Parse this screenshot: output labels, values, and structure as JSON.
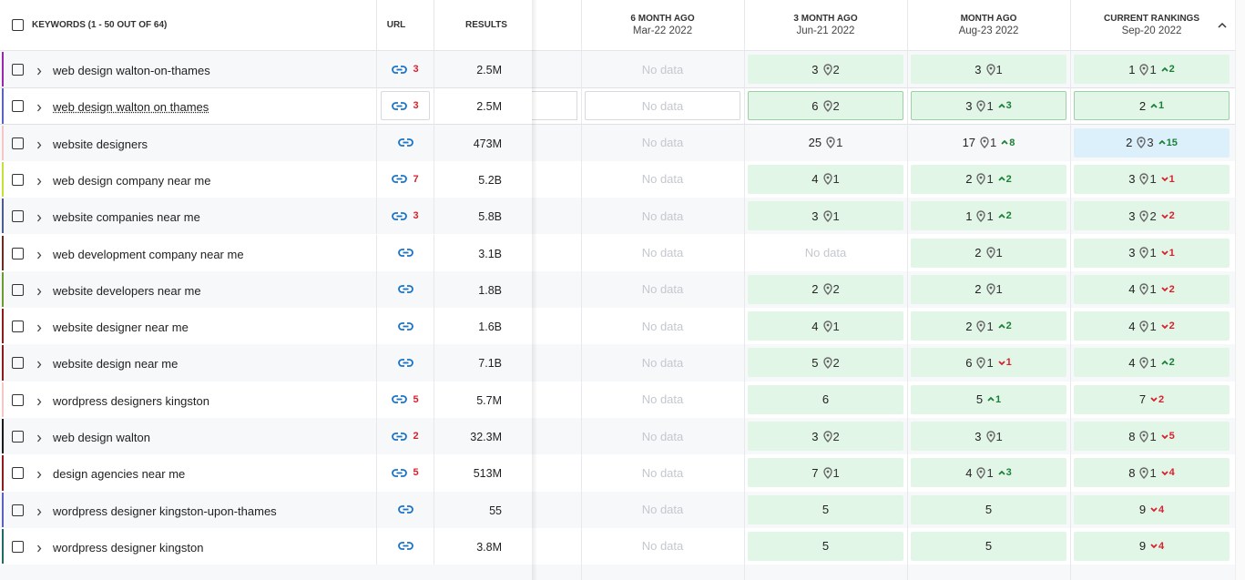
{
  "header": {
    "keywords": "KEYWORDS (1 - 50 OUT OF 64)",
    "url": "URL",
    "results": "RESULTS",
    "six_month": {
      "title": "6 MONTH AGO",
      "date": "Mar-22 2022"
    },
    "three_month": {
      "title": "3 MONTH AGO",
      "date": "Jun-21 2022"
    },
    "month": {
      "title": "MONTH AGO",
      "date": "Aug-23 2022"
    },
    "current": {
      "title": "CURRENT RANKINGS",
      "date": "Sep-20 2022"
    }
  },
  "rows": [
    {
      "keyword": "web design walton-on-thames",
      "bar_color": "#9b27af",
      "url_count": "3",
      "results": "2.5M",
      "six_month": {
        "text": "No data"
      },
      "three_month": {
        "rank": "3",
        "pins": "2",
        "highlight": "green"
      },
      "month": {
        "rank": "3",
        "pins": "1",
        "highlight": "green"
      },
      "current": {
        "rank": "1",
        "pins": "1",
        "change": "2",
        "trend": "up",
        "highlight": "green"
      }
    },
    {
      "keyword": "web design walton on thames",
      "bar_color": "#5c5fc6",
      "url_count": "3",
      "results": "2.5M",
      "six_month": {
        "text": "No data"
      },
      "three_month": {
        "rank": "6",
        "pins": "2",
        "highlight": "green"
      },
      "month": {
        "rank": "3",
        "pins": "1",
        "change": "3",
        "trend": "up",
        "highlight": "green"
      },
      "current": {
        "rank": "2",
        "change": "1",
        "trend": "up",
        "highlight": "green"
      }
    },
    {
      "keyword": "website designers",
      "bar_color": "#f4c6c6",
      "results": "473M",
      "six_month": {
        "text": "No data"
      },
      "three_month": {
        "rank": "25",
        "pins": "1"
      },
      "month": {
        "rank": "17",
        "pins": "1",
        "change": "8",
        "trend": "up"
      },
      "current": {
        "rank": "2",
        "pins": "3",
        "change": "15",
        "trend": "up",
        "highlight": "blue"
      }
    },
    {
      "keyword": "web design company near me",
      "bar_color": "#c6e03a",
      "url_count": "7",
      "results": "5.2B",
      "six_month": {
        "text": "No data"
      },
      "three_month": {
        "rank": "4",
        "pins": "1",
        "highlight": "green"
      },
      "month": {
        "rank": "2",
        "pins": "1",
        "change": "2",
        "trend": "up",
        "highlight": "green"
      },
      "current": {
        "rank": "3",
        "pins": "1",
        "change": "1",
        "trend": "down",
        "highlight": "green"
      }
    },
    {
      "keyword": "website companies near me",
      "bar_color": "#4a5d8c",
      "url_count": "3",
      "results": "5.8B",
      "six_month": {
        "text": "No data"
      },
      "three_month": {
        "rank": "3",
        "pins": "1",
        "highlight": "green"
      },
      "month": {
        "rank": "1",
        "pins": "1",
        "change": "2",
        "trend": "up",
        "highlight": "green"
      },
      "current": {
        "rank": "3",
        "pins": "2",
        "change": "2",
        "trend": "down",
        "highlight": "green"
      }
    },
    {
      "keyword": "web development company near me",
      "bar_color": "#6b2b1e",
      "results": "3.1B",
      "six_month": {
        "text": "No data"
      },
      "three_month": {
        "text": "No data"
      },
      "month": {
        "rank": "2",
        "pins": "1",
        "highlight": "green"
      },
      "current": {
        "rank": "3",
        "pins": "1",
        "change": "1",
        "trend": "down",
        "highlight": "green"
      }
    },
    {
      "keyword": "website developers near me",
      "bar_color": "#6b9a2e",
      "results": "1.8B",
      "six_month": {
        "text": "No data"
      },
      "three_month": {
        "rank": "2",
        "pins": "2",
        "highlight": "green"
      },
      "month": {
        "rank": "2",
        "pins": "1",
        "highlight": "green"
      },
      "current": {
        "rank": "4",
        "pins": "1",
        "change": "2",
        "trend": "down",
        "highlight": "green"
      }
    },
    {
      "keyword": "website designer near me",
      "bar_color": "#8e1b1b",
      "results": "1.6B",
      "six_month": {
        "text": "No data"
      },
      "three_month": {
        "rank": "4",
        "pins": "1",
        "highlight": "green"
      },
      "month": {
        "rank": "2",
        "pins": "1",
        "change": "2",
        "trend": "up",
        "highlight": "green"
      },
      "current": {
        "rank": "4",
        "pins": "1",
        "change": "2",
        "trend": "down",
        "highlight": "green"
      }
    },
    {
      "keyword": "website design near me",
      "bar_color": "#8e1b1b",
      "results": "7.1B",
      "six_month": {
        "text": "No data"
      },
      "three_month": {
        "rank": "5",
        "pins": "2",
        "highlight": "green"
      },
      "month": {
        "rank": "6",
        "pins": "1",
        "change": "1",
        "trend": "down",
        "highlight": "green"
      },
      "current": {
        "rank": "4",
        "pins": "1",
        "change": "2",
        "trend": "up",
        "highlight": "green"
      }
    },
    {
      "keyword": "wordpress designers kingston",
      "bar_color": "#f4c6c6",
      "url_count": "5",
      "results": "5.7M",
      "six_month": {
        "text": "No data"
      },
      "three_month": {
        "rank": "6",
        "highlight": "green"
      },
      "month": {
        "rank": "5",
        "change": "1",
        "trend": "up",
        "highlight": "green"
      },
      "current": {
        "rank": "7",
        "change": "2",
        "trend": "down",
        "highlight": "green"
      }
    },
    {
      "keyword": "web design walton",
      "bar_color": "#1a1a1a",
      "url_count": "2",
      "results": "32.3M",
      "six_month": {
        "text": "No data"
      },
      "three_month": {
        "rank": "3",
        "pins": "2",
        "highlight": "green"
      },
      "month": {
        "rank": "3",
        "pins": "1",
        "highlight": "green"
      },
      "current": {
        "rank": "8",
        "pins": "1",
        "change": "5",
        "trend": "down",
        "highlight": "green"
      }
    },
    {
      "keyword": "design agencies near me",
      "bar_color": "#8e1b1b",
      "url_count": "5",
      "results": "513M",
      "six_month": {
        "text": "No data"
      },
      "three_month": {
        "rank": "7",
        "pins": "1",
        "highlight": "green"
      },
      "month": {
        "rank": "4",
        "pins": "1",
        "change": "3",
        "trend": "up",
        "highlight": "green"
      },
      "current": {
        "rank": "8",
        "pins": "1",
        "change": "4",
        "trend": "down",
        "highlight": "green"
      }
    },
    {
      "keyword": "wordpress designer kingston-upon-thames",
      "bar_color": "#5c5fc6",
      "results": "55",
      "six_month": {
        "text": "No data"
      },
      "three_month": {
        "rank": "5",
        "highlight": "green"
      },
      "month": {
        "rank": "5",
        "highlight": "green"
      },
      "current": {
        "rank": "9",
        "change": "4",
        "trend": "down",
        "highlight": "green"
      }
    },
    {
      "keyword": "wordpress designer kingston",
      "bar_color": "#1f6b63",
      "results": "3.8M",
      "six_month": {
        "text": "No data"
      },
      "three_month": {
        "rank": "5",
        "highlight": "green"
      },
      "month": {
        "rank": "5",
        "highlight": "green"
      },
      "current": {
        "rank": "9",
        "change": "4",
        "trend": "down",
        "highlight": "green"
      }
    }
  ]
}
